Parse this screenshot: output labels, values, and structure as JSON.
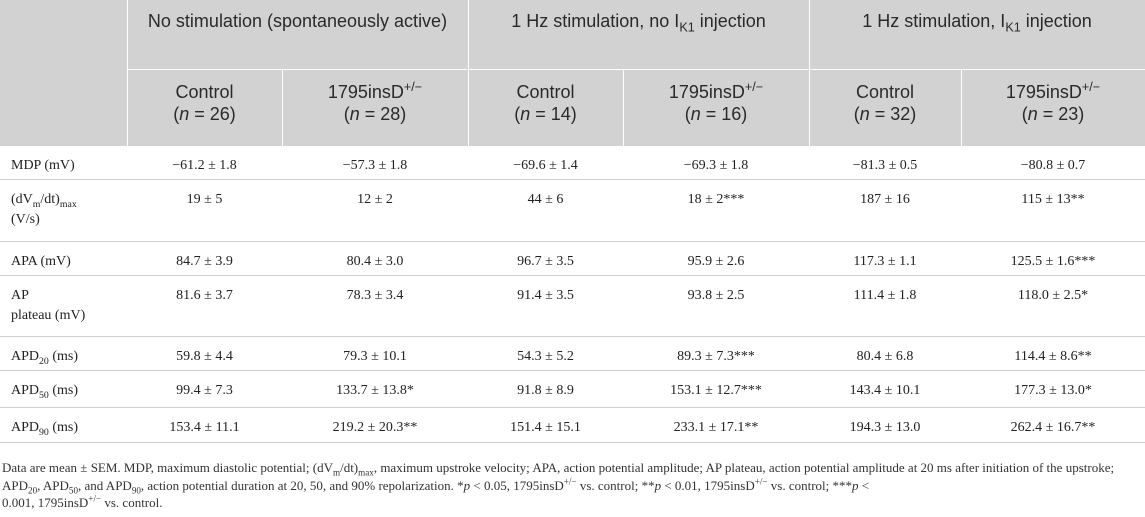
{
  "header": {
    "groups": [
      "No stimulation (spontaneously active)",
      "1 Hz stimulation, no I",
      "1 Hz stimulation, I"
    ],
    "group_sub": "K1",
    "group_tail": " injection",
    "columns": [
      {
        "name": "Control",
        "n": "26"
      },
      {
        "name": "1795insD",
        "sup": "+/−",
        "n": "28"
      },
      {
        "name": "Control",
        "n": "14"
      },
      {
        "name": "1795insD",
        "sup": "+/−",
        "n": "16"
      },
      {
        "name": "Control",
        "n": "32"
      },
      {
        "name": "1795insD",
        "sup": "+/−",
        "n": "23"
      }
    ],
    "n_label": "n",
    "n_eq": " = ",
    "open": "(",
    "close": ")"
  },
  "rows": [
    {
      "label": "MDP (mV)",
      "values": [
        "−61.2 ± 1.8",
        "−57.3 ± 1.8",
        "−69.6 ± 1.4",
        "−69.3 ± 1.8",
        "−81.3 ± 0.5",
        "−80.8 ± 0.7"
      ]
    },
    {
      "label_pre": "(dV",
      "label_sub1": "m",
      "label_mid": "/dt)",
      "label_sub2": "max",
      "label_post": "(V/s)",
      "values": [
        "19 ± 5",
        "12 ± 2",
        "44 ± 6",
        "18 ± 2***",
        "187 ± 16",
        "115 ± 13**"
      ]
    },
    {
      "label": "APA (mV)",
      "values": [
        "84.7 ± 3.9",
        "80.4 ± 3.0",
        "96.7 ± 3.5",
        "95.9 ± 2.6",
        "117.3 ± 1.1",
        "125.5 ± 1.6***"
      ]
    },
    {
      "label_l1": "AP",
      "label_l2": "plateau (mV)",
      "values": [
        "81.6 ± 3.7",
        "78.3 ± 3.4",
        "91.4 ± 3.5",
        "93.8 ± 2.5",
        "111.4 ± 1.8",
        "118.0 ± 2.5*"
      ]
    },
    {
      "label_pre": "APD",
      "label_sub": "20",
      "label_post": " (ms)",
      "values": [
        "59.8 ± 4.4",
        "79.3 ± 10.1",
        "54.3 ± 5.2",
        "89.3 ± 7.3***",
        "80.4 ± 6.8",
        "114.4 ± 8.6**"
      ]
    },
    {
      "label_pre": "APD",
      "label_sub": "50",
      "label_post": " (ms)",
      "values": [
        "99.4 ± 7.3",
        "133.7 ± 13.8*",
        "91.8 ± 8.9",
        "153.1 ± 12.7***",
        "143.4 ± 10.1",
        "177.3 ± 13.0*"
      ]
    },
    {
      "label_pre": "APD",
      "label_sub": "90",
      "label_post": " (ms)",
      "values": [
        "153.4 ± 11.1",
        "219.2 ± 20.3**",
        "151.4 ± 15.1",
        "233.1 ± 17.1**",
        "194.3 ± 13.0",
        "262.4 ± 16.7**"
      ]
    }
  ],
  "footnote": {
    "t1": "Data are mean ± SEM. MDP, maximum diastolic potential; (dV",
    "s1": "m",
    "t2": "/dt)",
    "s2": "max",
    "t3": ", maximum upstroke velocity; APA, action potential amplitude; AP plateau, action potential amplitude at 20 ms after initiation of the upstroke; APD",
    "s3": "20",
    "t4": ", APD",
    "s4": "50",
    "t5": ", and APD",
    "s5": "90",
    "t6": ", action potential duration at 20, 50, and 90% repolarization. *",
    "p": "p",
    "t7": " < 0.05, 1795insD",
    "sup": "+/−",
    "t8": " vs. control; **",
    "t9": " < 0.01, 1795insD",
    "t10": " vs. control; ***",
    "t11": " <",
    "t12": "0.001, 1795insD",
    "t13": " vs. control."
  }
}
